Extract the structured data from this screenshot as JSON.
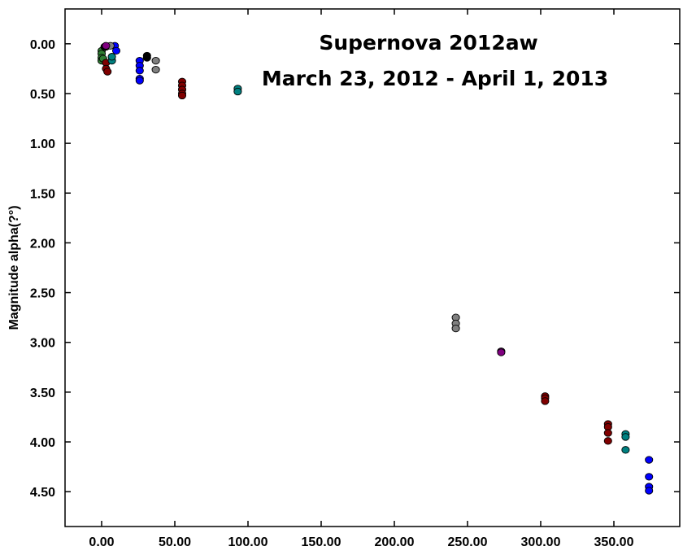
{
  "chart_data": {
    "type": "scatter",
    "title": [
      "Supernova 2012aw",
      "March 23, 2012 - April 1, 2013"
    ],
    "ylabel": "Magnitude alpha(?°)",
    "xlabel": "",
    "xlim": [
      -25,
      395
    ],
    "ylim": [
      -0.35,
      4.85
    ],
    "y_inverted": true,
    "grid": false,
    "legend": "none",
    "x_ticks": [
      0,
      50,
      100,
      150,
      200,
      250,
      300,
      350
    ],
    "x_tick_labels": [
      "0.00",
      "50.00",
      "100.00",
      "150.00",
      "200.00",
      "250.00",
      "300.00",
      "350.00"
    ],
    "y_ticks": [
      0,
      0.5,
      1,
      1.5,
      2,
      2.5,
      3,
      3.5,
      4,
      4.5
    ],
    "y_tick_labels": [
      "0.00",
      "0.50",
      "1.00",
      "1.50",
      "2.00",
      "2.50",
      "3.00",
      "3.50",
      "4.00",
      "4.50"
    ],
    "series": [
      {
        "color": "#0000ff",
        "points": [
          [
            9,
            0.02
          ],
          [
            10,
            0.07
          ],
          [
            26,
            0.17
          ],
          [
            26,
            0.22
          ],
          [
            26,
            0.27
          ],
          [
            26,
            0.35
          ],
          [
            26,
            0.37
          ],
          [
            374,
            4.18
          ],
          [
            374,
            4.35
          ],
          [
            374,
            4.45
          ],
          [
            374,
            4.49
          ]
        ]
      },
      {
        "color": "#2e7d32",
        "points": [
          [
            0,
            0.07
          ],
          [
            0,
            0.1
          ],
          [
            0,
            0.14
          ],
          [
            0,
            0.17
          ],
          [
            1,
            0.15
          ]
        ]
      },
      {
        "color": "#800000",
        "points": [
          [
            3,
            0.03
          ],
          [
            3,
            0.19
          ],
          [
            3,
            0.25
          ],
          [
            4,
            0.28
          ],
          [
            55,
            0.38
          ],
          [
            55,
            0.42
          ],
          [
            55,
            0.46
          ],
          [
            55,
            0.5
          ],
          [
            55,
            0.52
          ],
          [
            303,
            3.54
          ],
          [
            303,
            3.56
          ],
          [
            303,
            3.59
          ],
          [
            346,
            3.82
          ],
          [
            346,
            3.85
          ],
          [
            346,
            3.91
          ],
          [
            346,
            3.99
          ]
        ]
      },
      {
        "color": "#808080",
        "points": [
          [
            6,
            0.02
          ],
          [
            37,
            0.17
          ],
          [
            37,
            0.26
          ],
          [
            242,
            2.75
          ],
          [
            242,
            2.81
          ],
          [
            242,
            2.86
          ]
        ]
      },
      {
        "color": "#000000",
        "points": [
          [
            2,
            0.03
          ],
          [
            31,
            0.12
          ],
          [
            31,
            0.14
          ]
        ]
      },
      {
        "color": "#008080",
        "points": [
          [
            7,
            0.17
          ],
          [
            7,
            0.13
          ],
          [
            93,
            0.45
          ],
          [
            93,
            0.48
          ],
          [
            358,
            3.92
          ],
          [
            358,
            3.95
          ],
          [
            358,
            4.08
          ]
        ]
      },
      {
        "color": "#800080",
        "points": [
          [
            3,
            0.02
          ],
          [
            273,
            3.09
          ],
          [
            273,
            3.1
          ]
        ]
      }
    ]
  }
}
